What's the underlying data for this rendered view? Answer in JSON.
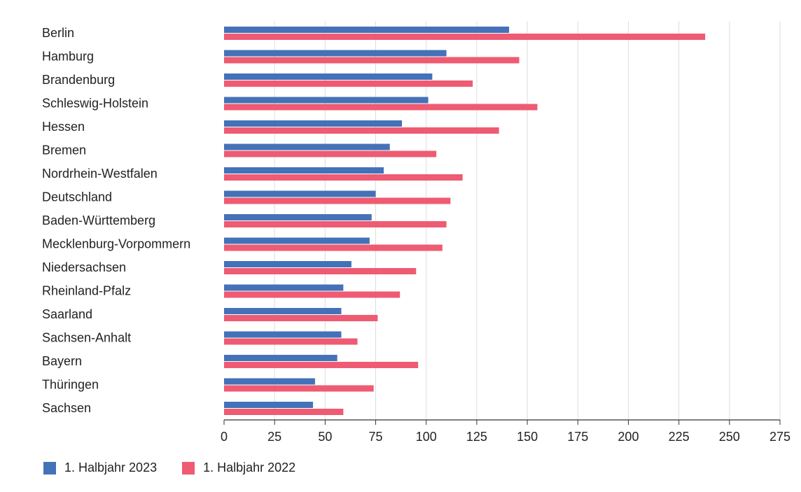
{
  "chart_data": {
    "type": "bar",
    "orientation": "horizontal",
    "categories": [
      "Berlin",
      "Hamburg",
      "Brandenburg",
      "Schleswig-Holstein",
      "Hessen",
      "Bremen",
      "Nordrhein-Westfalen",
      "Deutschland",
      "Baden-Württemberg",
      "Mecklenburg-Vorpommern",
      "Niedersachsen",
      "Rheinland-Pfalz",
      "Saarland",
      "Sachsen-Anhalt",
      "Bayern",
      "Thüringen",
      "Sachsen"
    ],
    "series": [
      {
        "name": "1. Halbjahr 2023",
        "color": "#4472b8",
        "values": [
          141,
          110,
          103,
          101,
          88,
          82,
          79,
          75,
          73,
          72,
          63,
          59,
          58,
          58,
          56,
          45,
          44
        ]
      },
      {
        "name": "1. Halbjahr 2022",
        "color": "#ee5b72",
        "values": [
          238,
          146,
          123,
          155,
          136,
          105,
          118,
          112,
          110,
          108,
          95,
          87,
          76,
          66,
          96,
          74,
          59
        ]
      }
    ],
    "xlim": [
      0,
      275
    ],
    "xticks": [
      0,
      25,
      50,
      75,
      100,
      125,
      150,
      175,
      200,
      225,
      250,
      275
    ],
    "grid": true,
    "legend_position": "bottom-left"
  }
}
